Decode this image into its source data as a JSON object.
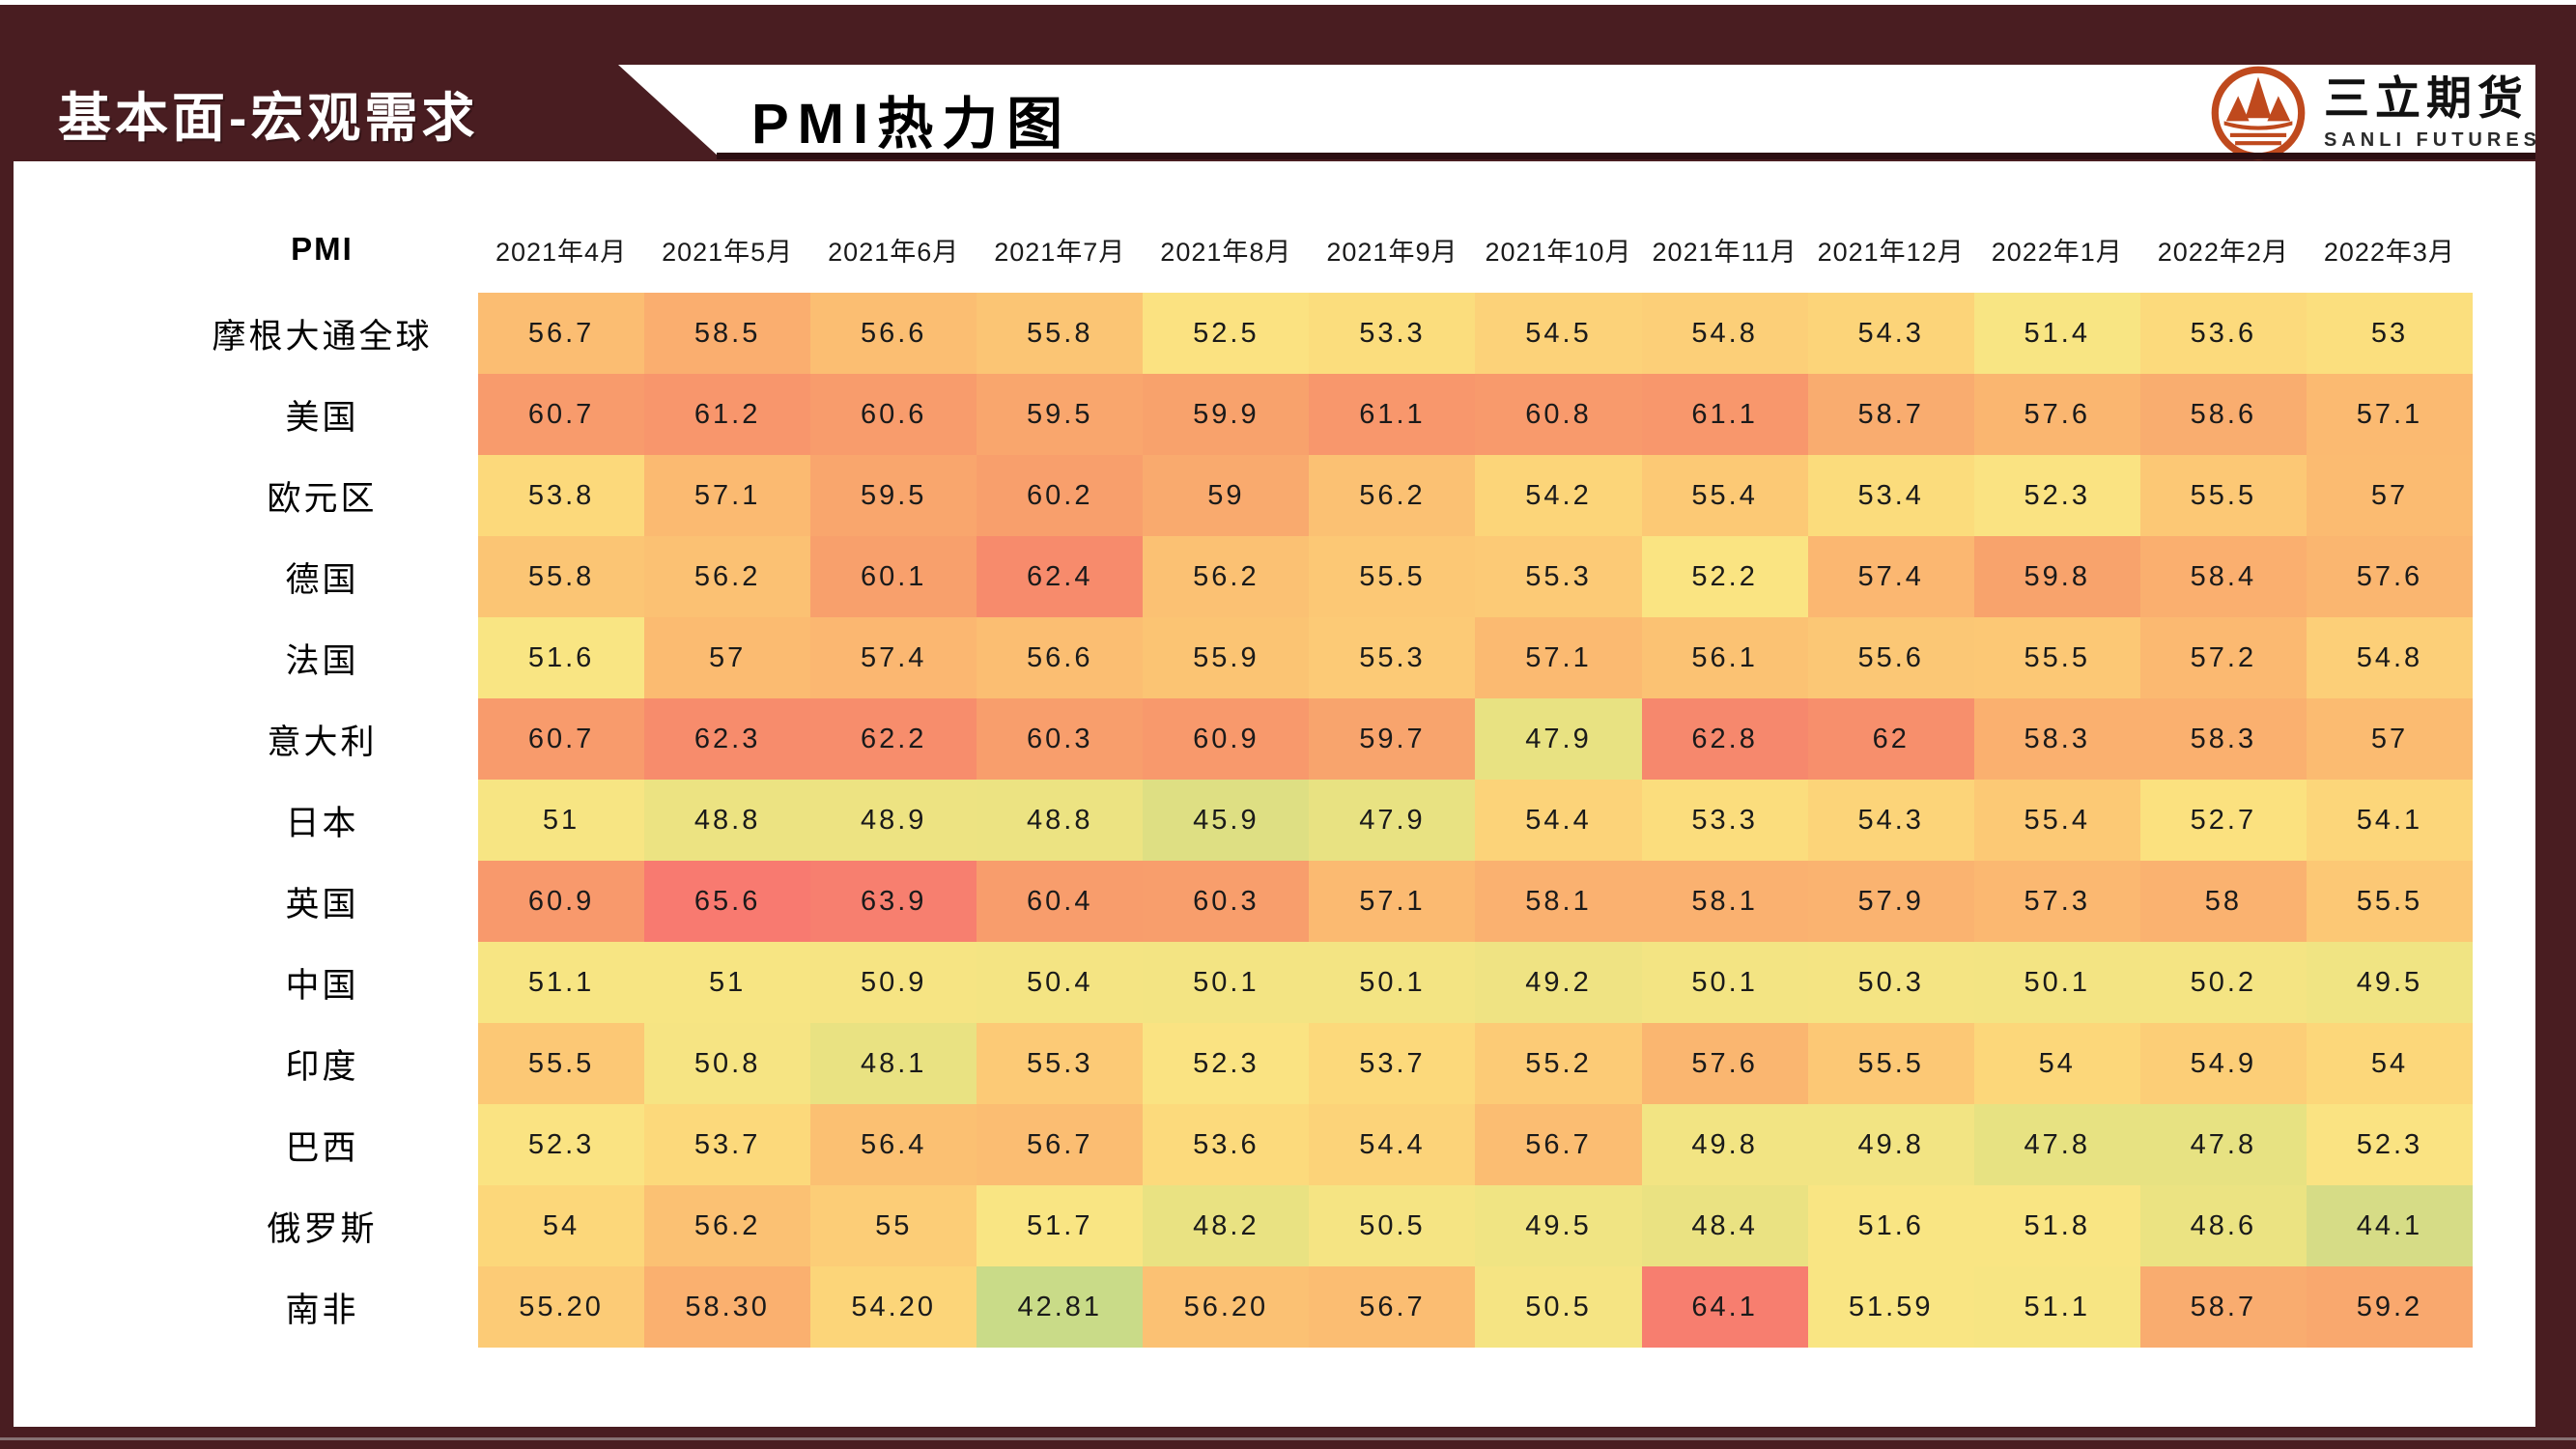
{
  "theme": {
    "maroon": "#491d21",
    "band_underline": "#2b0e11",
    "page_bg": "#ffffff",
    "text_dark": "#1a1a1a",
    "bottom_line": "#9b8d8e",
    "logo_color": "#bf491d"
  },
  "header": {
    "section_label": "基本面-宏观需求",
    "page_title": "PMI热力图",
    "logo": {
      "company_cn": "三立期货",
      "company_en": "SANLI FUTURES",
      "icon": "mountain-circle-logo"
    }
  },
  "chart_data": {
    "type": "heatmap",
    "title": "PMI热力图",
    "corner_label": "PMI",
    "columns": [
      "2021年4月",
      "2021年5月",
      "2021年6月",
      "2021年7月",
      "2021年8月",
      "2021年9月",
      "2021年10月",
      "2021年11月",
      "2021年12月",
      "2022年1月",
      "2022年2月",
      "2022年3月"
    ],
    "rows": [
      {
        "label": "摩根大通全球",
        "values": [
          "56.7",
          "58.5",
          "56.6",
          "55.8",
          "52.5",
          "53.3",
          "54.5",
          "54.8",
          "54.3",
          "51.4",
          "53.6",
          "53"
        ]
      },
      {
        "label": "美国",
        "values": [
          "60.7",
          "61.2",
          "60.6",
          "59.5",
          "59.9",
          "61.1",
          "60.8",
          "61.1",
          "58.7",
          "57.6",
          "58.6",
          "57.1"
        ]
      },
      {
        "label": "欧元区",
        "values": [
          "53.8",
          "57.1",
          "59.5",
          "60.2",
          "59",
          "56.2",
          "54.2",
          "55.4",
          "53.4",
          "52.3",
          "55.5",
          "57"
        ]
      },
      {
        "label": "德国",
        "values": [
          "55.8",
          "56.2",
          "60.1",
          "62.4",
          "56.2",
          "55.5",
          "55.3",
          "52.2",
          "57.4",
          "59.8",
          "58.4",
          "57.6"
        ]
      },
      {
        "label": "法国",
        "values": [
          "51.6",
          "57",
          "57.4",
          "56.6",
          "55.9",
          "55.3",
          "57.1",
          "56.1",
          "55.6",
          "55.5",
          "57.2",
          "54.8"
        ]
      },
      {
        "label": "意大利",
        "values": [
          "60.7",
          "62.3",
          "62.2",
          "60.3",
          "60.9",
          "59.7",
          "47.9",
          "62.8",
          "62",
          "58.3",
          "58.3",
          "57"
        ]
      },
      {
        "label": "日本",
        "values": [
          "51",
          "48.8",
          "48.9",
          "48.8",
          "45.9",
          "47.9",
          "54.4",
          "53.3",
          "54.3",
          "55.4",
          "52.7",
          "54.1"
        ]
      },
      {
        "label": "英国",
        "values": [
          "60.9",
          "65.6",
          "63.9",
          "60.4",
          "60.3",
          "57.1",
          "58.1",
          "58.1",
          "57.9",
          "57.3",
          "58",
          "55.5"
        ]
      },
      {
        "label": "中国",
        "values": [
          "51.1",
          "51",
          "50.9",
          "50.4",
          "50.1",
          "50.1",
          "49.2",
          "50.1",
          "50.3",
          "50.1",
          "50.2",
          "49.5"
        ]
      },
      {
        "label": "印度",
        "values": [
          "55.5",
          "50.8",
          "48.1",
          "55.3",
          "52.3",
          "53.7",
          "55.2",
          "57.6",
          "55.5",
          "54",
          "54.9",
          "54"
        ]
      },
      {
        "label": "巴西",
        "values": [
          "52.3",
          "53.7",
          "56.4",
          "56.7",
          "53.6",
          "54.4",
          "56.7",
          "49.8",
          "49.8",
          "47.8",
          "47.8",
          "52.3"
        ]
      },
      {
        "label": "俄罗斯",
        "values": [
          "54",
          "56.2",
          "55",
          "51.7",
          "48.2",
          "50.5",
          "49.5",
          "48.4",
          "51.6",
          "51.8",
          "48.6",
          "44.1"
        ]
      },
      {
        "label": "南非",
        "values": [
          "55.20",
          "58.30",
          "54.20",
          "42.81",
          "56.20",
          "56.7",
          "50.5",
          "64.1",
          "51.59",
          "51.1",
          "58.7",
          "59.2"
        ]
      }
    ],
    "value_range": [
      42.81,
      65.6
    ],
    "color_scale": {
      "type": "3-color-gradient",
      "stops": [
        [
          42.8,
          "#c9db88"
        ],
        [
          44.1,
          "#d6dc86"
        ],
        [
          46.0,
          "#dedf83"
        ],
        [
          48.0,
          "#e8e282"
        ],
        [
          50.0,
          "#f3e483"
        ],
        [
          52.0,
          "#fae583"
        ],
        [
          53.0,
          "#fbdf7e"
        ],
        [
          54.0,
          "#fcd77a"
        ],
        [
          55.0,
          "#fccd77"
        ],
        [
          56.0,
          "#fbc373"
        ],
        [
          57.0,
          "#fbbb71"
        ],
        [
          58.0,
          "#fab270"
        ],
        [
          59.0,
          "#f9aa6e"
        ],
        [
          60.0,
          "#f8a16c"
        ],
        [
          61.0,
          "#f8986c"
        ],
        [
          62.0,
          "#f78f6c"
        ],
        [
          63.0,
          "#f6866d"
        ],
        [
          64.1,
          "#f77e6f"
        ],
        [
          65.6,
          "#f87a70"
        ]
      ]
    }
  }
}
